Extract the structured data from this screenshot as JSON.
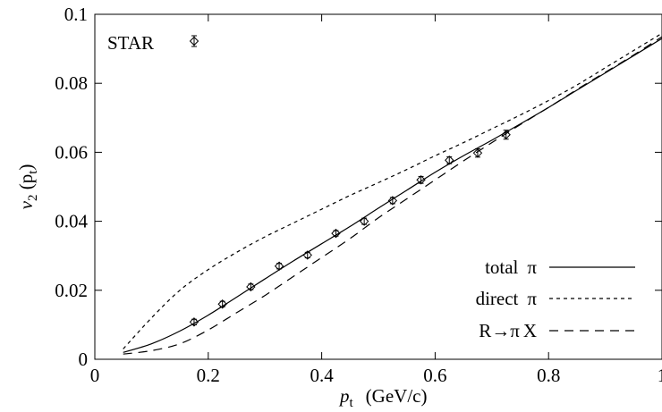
{
  "chart_data": {
    "type": "line",
    "xlabel": "p_t (GeV/c)",
    "xlabel_parts": {
      "symbol": "p",
      "subscript": "t",
      "unit": "(GeV/c)"
    },
    "ylabel": "v_2 (p_t)",
    "ylabel_parts": {
      "symbol": "v",
      "subscript": "2",
      "argument": "(p",
      "arg_subscript": "t",
      "close": ")"
    },
    "xlim": [
      0,
      1
    ],
    "ylim": [
      0,
      0.1
    ],
    "x_ticks": [
      0,
      0.2,
      0.4,
      0.6,
      0.8,
      1
    ],
    "x_tick_labels": [
      "0",
      "0.2",
      "0.4",
      "0.6",
      "0.8",
      "1"
    ],
    "y_ticks": [
      0,
      0.02,
      0.04,
      0.06,
      0.08,
      0.1
    ],
    "y_tick_labels": [
      "0",
      "0.02",
      "0.04",
      "0.06",
      "0.08",
      "0.1"
    ],
    "grid": false,
    "legend_placement": "top-left and bottom-right",
    "data_series": {
      "name": "STAR",
      "marker": "diamond",
      "x": [
        0.175,
        0.225,
        0.275,
        0.325,
        0.375,
        0.425,
        0.475,
        0.525,
        0.575,
        0.625,
        0.675,
        0.725
      ],
      "y": [
        0.0108,
        0.016,
        0.021,
        0.027,
        0.0302,
        0.0365,
        0.04,
        0.046,
        0.052,
        0.0577,
        0.0598,
        0.0651
      ],
      "err": [
        0.0008,
        0.0008,
        0.0008,
        0.0008,
        0.0008,
        0.0008,
        0.0009,
        0.0009,
        0.001,
        0.001,
        0.0012,
        0.0013
      ]
    },
    "series": [
      {
        "name": "total π",
        "dash": "solid",
        "x": [
          0.05,
          0.1,
          0.15,
          0.2,
          0.25,
          0.3,
          0.35,
          0.4,
          0.45,
          0.5,
          0.55,
          0.6,
          0.65,
          0.7,
          0.75,
          0.8,
          0.85,
          0.9,
          0.95,
          1.0
        ],
        "y": [
          0.002,
          0.0045,
          0.0082,
          0.0128,
          0.018,
          0.0233,
          0.0285,
          0.0335,
          0.0385,
          0.0438,
          0.049,
          0.0542,
          0.059,
          0.0635,
          0.0682,
          0.073,
          0.078,
          0.083,
          0.088,
          0.093
        ]
      },
      {
        "name": "direct π",
        "dash": "short",
        "x": [
          0.05,
          0.1,
          0.15,
          0.2,
          0.25,
          0.3,
          0.35,
          0.4,
          0.45,
          0.5,
          0.55,
          0.6,
          0.65,
          0.7,
          0.75,
          0.8,
          0.85,
          0.9,
          0.95,
          1.0
        ],
        "y": [
          0.003,
          0.012,
          0.02,
          0.026,
          0.031,
          0.0355,
          0.0395,
          0.0435,
          0.0475,
          0.0512,
          0.055,
          0.059,
          0.0628,
          0.0668,
          0.0708,
          0.075,
          0.0795,
          0.0845,
          0.0895,
          0.0945
        ]
      },
      {
        "name": "R→πX",
        "dash": "long",
        "x": [
          0.05,
          0.1,
          0.15,
          0.2,
          0.25,
          0.3,
          0.35,
          0.4,
          0.45,
          0.5,
          0.55,
          0.6,
          0.65,
          0.7,
          0.75,
          0.8,
          0.85,
          0.9,
          0.95,
          1.0
        ],
        "y": [
          0.0015,
          0.0025,
          0.0045,
          0.0085,
          0.0135,
          0.0185,
          0.024,
          0.0295,
          0.035,
          0.041,
          0.0465,
          0.052,
          0.0575,
          0.0628,
          0.068,
          0.073,
          0.0782,
          0.0832,
          0.0882,
          0.0935
        ]
      }
    ],
    "legend": {
      "data_label": "STAR",
      "entries": [
        {
          "text": "total",
          "symbol": "π"
        },
        {
          "text": "direct",
          "symbol": "π"
        },
        {
          "text": "R",
          "arrow": "→",
          "symbol": "π",
          "suffix": "X"
        }
      ]
    }
  }
}
